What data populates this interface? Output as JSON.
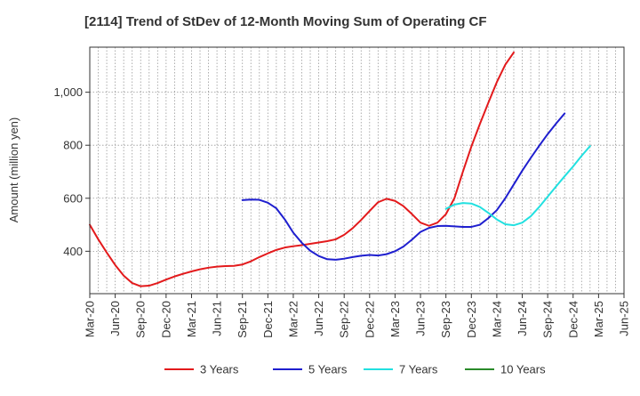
{
  "chart_data": {
    "type": "line",
    "title": "[2114]  Trend of StDev of 12-Month Moving Sum of Operating CF",
    "xlabel": "",
    "ylabel": "Amount (million yen)",
    "x_ticks": [
      "Mar-20",
      "Jun-20",
      "Sep-20",
      "Dec-20",
      "Mar-21",
      "Jun-21",
      "Sep-21",
      "Dec-21",
      "Mar-22",
      "Jun-22",
      "Sep-22",
      "Dec-22",
      "Mar-23",
      "Jun-23",
      "Sep-23",
      "Dec-23",
      "Mar-24",
      "Jun-24",
      "Sep-24",
      "Dec-24",
      "Mar-25",
      "Jun-25"
    ],
    "y_ticks": [
      400,
      600,
      800,
      1000
    ],
    "y_tick_labels": [
      "400",
      "600",
      "800",
      "1,000"
    ],
    "ylim": [
      240,
      1170
    ],
    "grid": true,
    "legend_position": "bottom",
    "series": [
      {
        "name": "3 Years",
        "color": "#e31a1c",
        "start_index": 0,
        "values": [
          500,
          445,
          395,
          348,
          308,
          280,
          268,
          270,
          280,
          293,
          305,
          315,
          324,
          332,
          338,
          342,
          344,
          345,
          350,
          362,
          378,
          392,
          405,
          414,
          419,
          423,
          428,
          433,
          438,
          445,
          462,
          487,
          518,
          552,
          585,
          598,
          590,
          570,
          540,
          508,
          496,
          508,
          540,
          600,
          700,
          795,
          880,
          960,
          1038,
          1104,
          1150
        ]
      },
      {
        "name": "5 Years",
        "color": "#1f1fcf",
        "start_index": 18,
        "values": [
          593,
          595,
          594,
          583,
          562,
          520,
          470,
          432,
          402,
          382,
          370,
          368,
          372,
          378,
          383,
          386,
          384,
          389,
          400,
          418,
          444,
          473,
          488,
          495,
          496,
          494,
          492,
          492,
          500,
          525,
          555,
          600,
          652,
          704,
          752,
          798,
          842,
          882,
          920
        ]
      },
      {
        "name": "7 Years",
        "color": "#22e0e0",
        "start_index": 42,
        "values": [
          560,
          576,
          582,
          580,
          567,
          545,
          520,
          502,
          498,
          508,
          532,
          567,
          606,
          645,
          683,
          720,
          760,
          797
        ]
      },
      {
        "name": "10 Years",
        "color": "#2a8a2a",
        "start_index": 0,
        "values": []
      }
    ]
  }
}
